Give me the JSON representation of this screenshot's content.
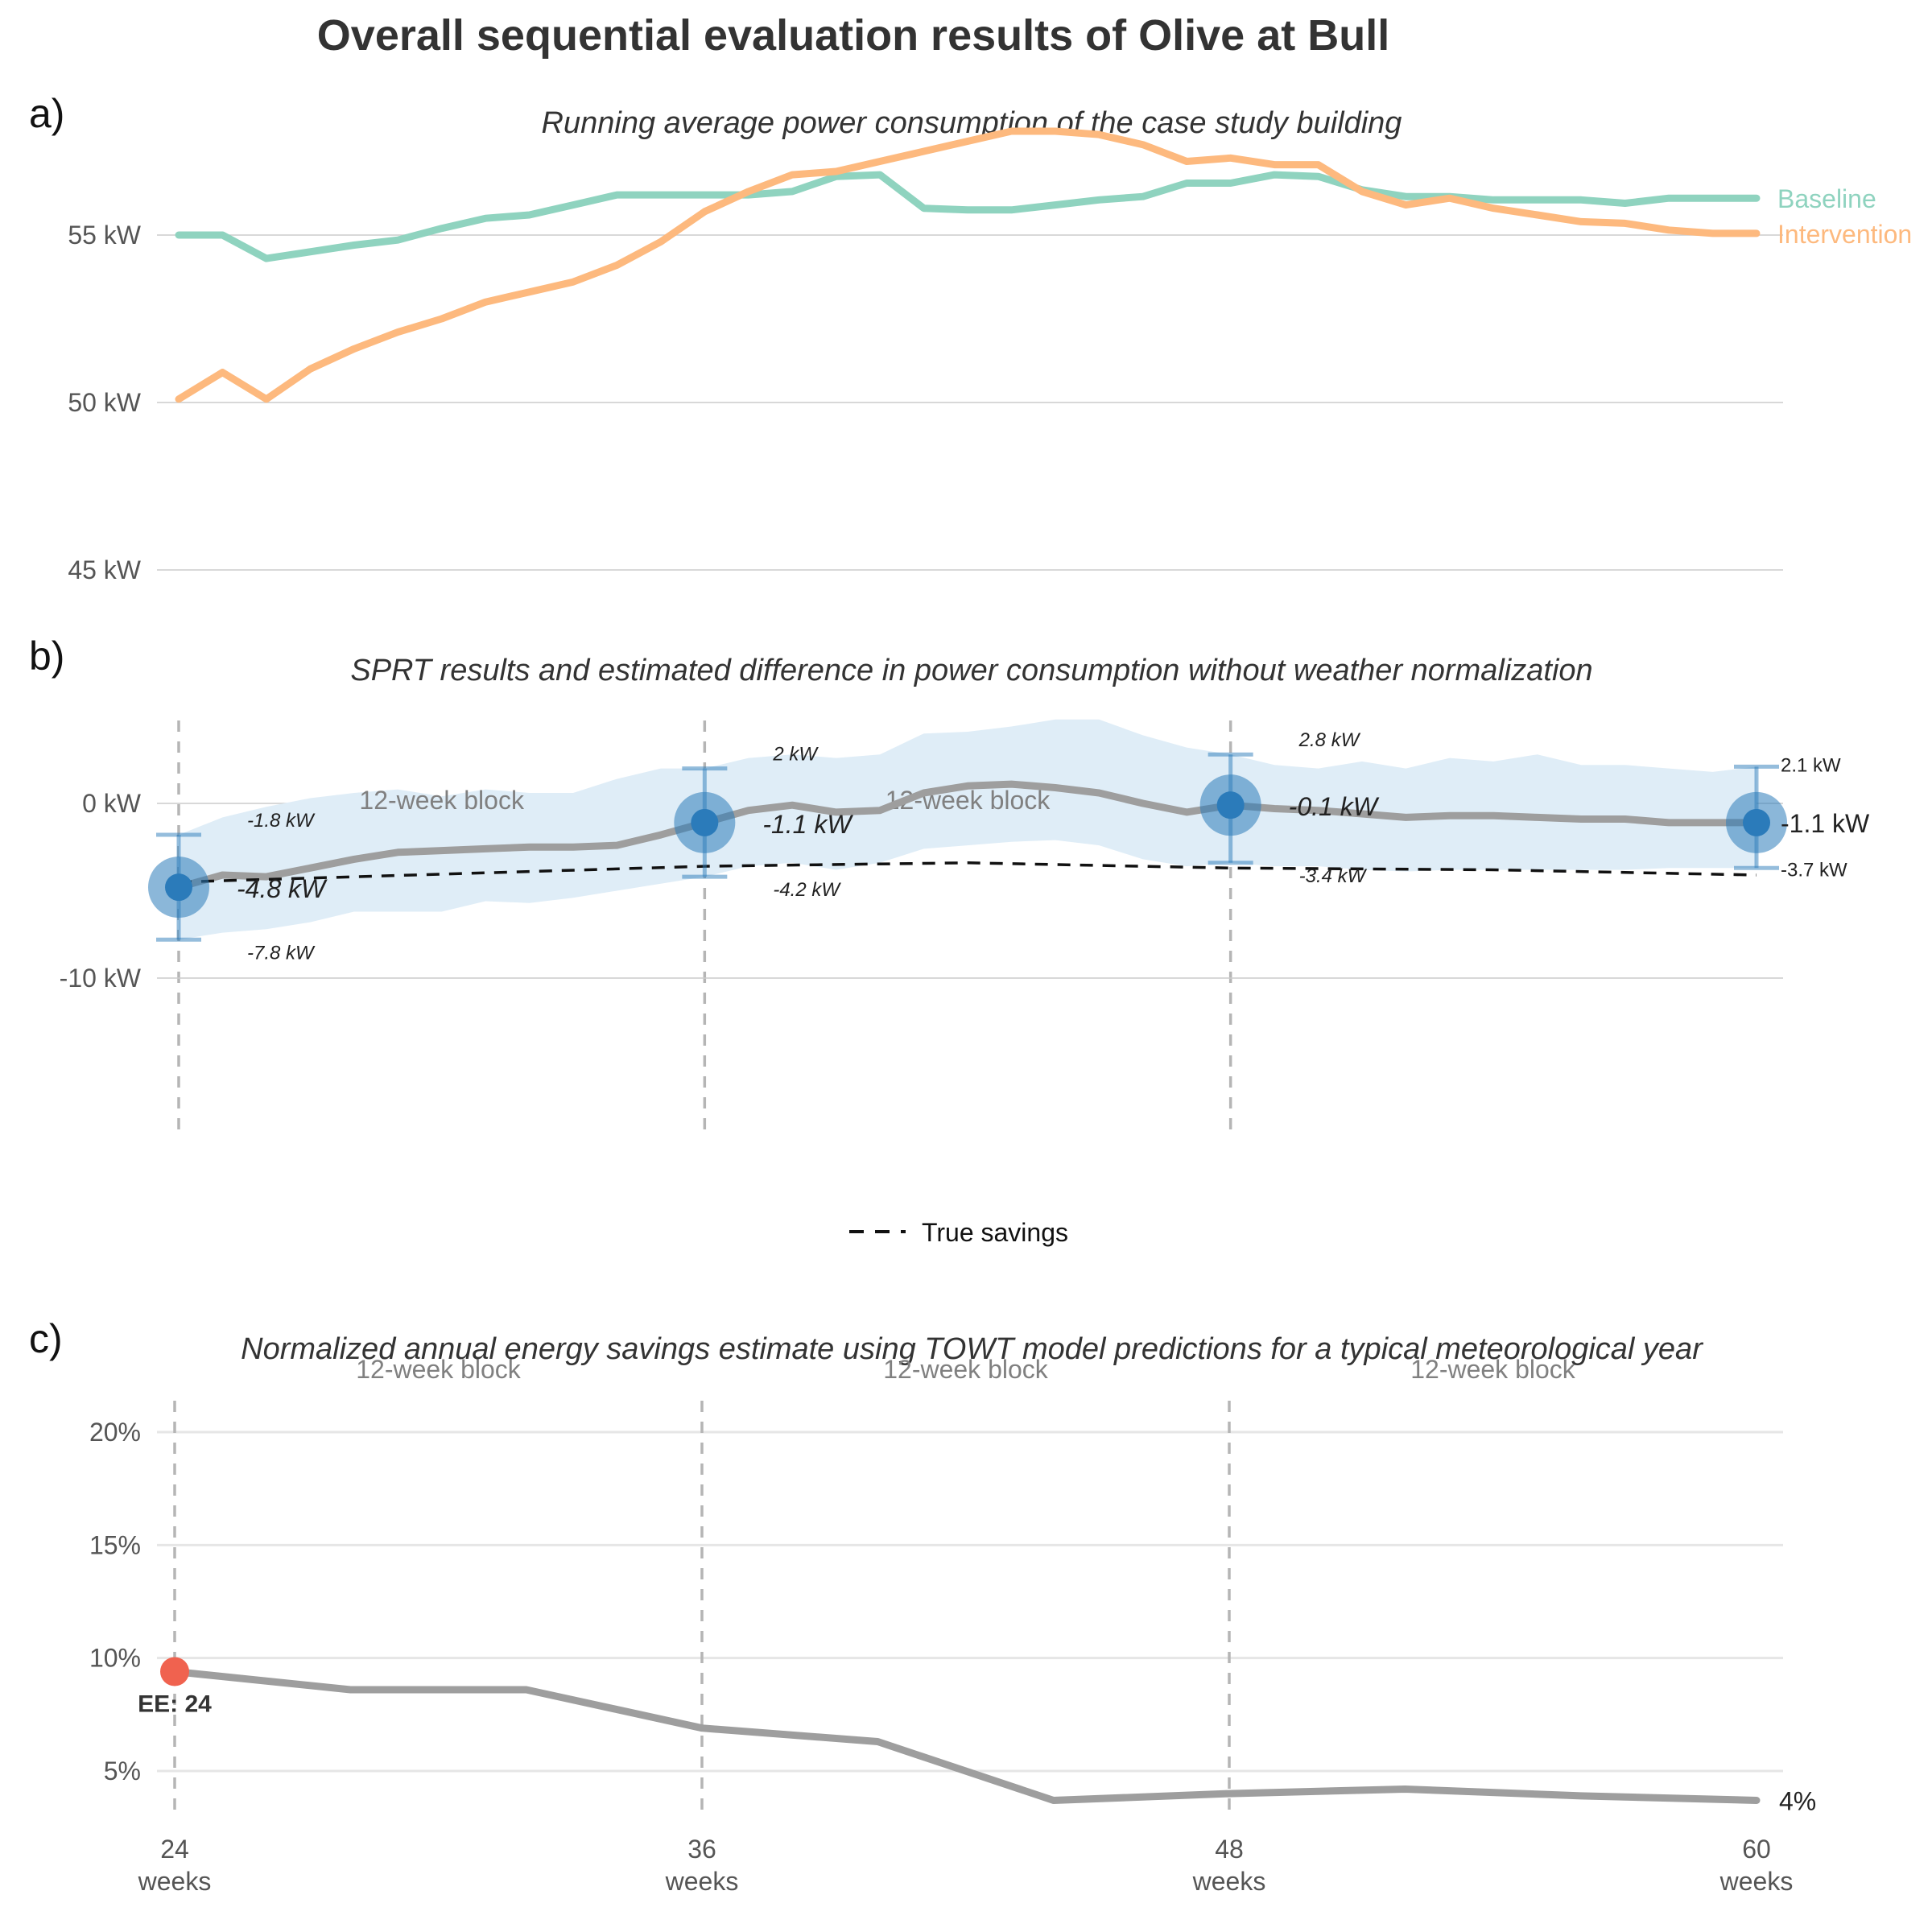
{
  "figure": {
    "title": "Overall sequential evaluation results of Olive at Bull"
  },
  "colors": {
    "baseline": "#8fd3bf",
    "intervention": "#fdb97e",
    "estimate": "#9e9e9e",
    "band": "#dfedf7",
    "point": "#2b7bba",
    "ee_point": "#f0624f",
    "true_savings": "#111111",
    "grid": "#cccccc",
    "vline": "#b5b5b5"
  },
  "chart_data": [
    {
      "panel": "a)",
      "type": "line",
      "title": "Running average power consumption of the case study building",
      "xlim": [
        24,
        60
      ],
      "ylim": [
        44,
        57.5
      ],
      "yticks": [
        45,
        50,
        55
      ],
      "ytick_labels": [
        "45 kW",
        "50 kW",
        "55 kW"
      ],
      "x": [
        24,
        25,
        26,
        27,
        28,
        29,
        30,
        31,
        32,
        33,
        34,
        35,
        36,
        37,
        38,
        39,
        40,
        41,
        42,
        43,
        44,
        45,
        46,
        47,
        48,
        49,
        50,
        51,
        52,
        53,
        54,
        55,
        56,
        57,
        58,
        59,
        60
      ],
      "series": [
        {
          "name": "Baseline",
          "values": [
            55,
            55,
            54.3,
            54.5,
            54.7,
            54.85,
            55.2,
            55.5,
            55.6,
            55.9,
            56.2,
            56.2,
            56.2,
            56.2,
            56.3,
            56.75,
            56.8,
            55.8,
            55.75,
            55.75,
            55.9,
            56.05,
            56.15,
            56.55,
            56.55,
            56.8,
            56.75,
            56.35,
            56.15,
            56.15,
            56.05,
            56.05,
            56.05,
            55.95,
            56.1,
            56.1,
            56.1
          ]
        },
        {
          "name": "Intervention",
          "values": [
            50.1,
            50.9,
            50.1,
            51,
            51.6,
            52.1,
            52.5,
            53,
            53.3,
            53.6,
            54.1,
            54.8,
            55.7,
            56.3,
            56.8,
            56.9,
            57.2,
            57.5,
            57.8,
            58.1,
            58.1,
            58,
            57.7,
            57.2,
            57.3,
            57.1,
            57.1,
            56.3,
            55.9,
            56.1,
            55.8,
            55.6,
            55.4,
            55.35,
            55.15,
            55.05,
            55.05
          ]
        }
      ]
    },
    {
      "panel": "b)",
      "type": "line",
      "title": "SPRT results and estimated difference in power consumption without weather normalization",
      "xlim": [
        24,
        60
      ],
      "ylim": [
        -20,
        5
      ],
      "yticks": [
        -10,
        0
      ],
      "ytick_labels": [
        "-10 kW",
        "0 kW"
      ],
      "x": [
        24,
        25,
        26,
        27,
        28,
        29,
        30,
        31,
        32,
        33,
        34,
        35,
        36,
        37,
        38,
        39,
        40,
        41,
        42,
        43,
        44,
        45,
        46,
        47,
        48,
        49,
        50,
        51,
        52,
        53,
        54,
        55,
        56,
        57,
        58,
        59,
        60
      ],
      "estimate": [
        -4.8,
        -4.1,
        -4.2,
        -3.7,
        -3.2,
        -2.8,
        -2.7,
        -2.6,
        -2.5,
        -2.5,
        -2.4,
        -1.8,
        -1.1,
        -0.4,
        -0.1,
        -0.5,
        -0.4,
        0.6,
        1.0,
        1.1,
        0.9,
        0.6,
        0.0,
        -0.5,
        -0.1,
        -0.3,
        -0.4,
        -0.6,
        -0.8,
        -0.7,
        -0.7,
        -0.8,
        -0.9,
        -0.9,
        -1.1,
        -1.1,
        -1.1
      ],
      "ci_lower": [
        -7.8,
        -7.4,
        -7.2,
        -6.8,
        -6.2,
        -6.2,
        -6.2,
        -5.6,
        -5.7,
        -5.4,
        -5.0,
        -4.6,
        -4.2,
        -3.6,
        -3.4,
        -3.8,
        -3.4,
        -2.6,
        -2.4,
        -2.2,
        -2.1,
        -2.4,
        -3.2,
        -3.6,
        -3.4,
        -3.6,
        -3.6,
        -3.8,
        -3.9,
        -3.8,
        -3.8,
        -3.8,
        -3.8,
        -3.8,
        -3.7,
        -3.7,
        -3.7
      ],
      "ci_upper": [
        -1.8,
        -0.8,
        -0.2,
        0.3,
        0.6,
        0.8,
        0.4,
        0.8,
        0.6,
        0.6,
        1.4,
        2.0,
        2.0,
        2.6,
        2.8,
        2.6,
        2.8,
        4.0,
        4.1,
        4.4,
        4.8,
        4.8,
        3.9,
        3.2,
        2.8,
        2.2,
        2.0,
        2.4,
        2.0,
        2.6,
        2.4,
        2.8,
        2.2,
        2.2,
        2.0,
        1.8,
        2.1
      ],
      "true_savings": {
        "name": "True savings",
        "x": [
          24,
          36,
          42,
          48,
          54,
          60
        ],
        "values": [
          -4.5,
          -3.6,
          -3.4,
          -3.7,
          -3.8,
          -4.1
        ]
      },
      "checkpoints": [
        {
          "x": 24,
          "y": -4.8,
          "lower": -7.8,
          "upper": -1.8,
          "label": "-4.8 kW",
          "lower_label": "-7.8 kW",
          "upper_label": "-1.8 kW"
        },
        {
          "x": 36,
          "y": -1.1,
          "lower": -4.2,
          "upper": 2.0,
          "label": "-1.1 kW",
          "lower_label": "-4.2 kW",
          "upper_label": "2 kW"
        },
        {
          "x": 48,
          "y": -0.1,
          "lower": -3.4,
          "upper": 2.8,
          "label": "-0.1 kW",
          "lower_label": "-3.4 kW",
          "upper_label": "2.8 kW"
        },
        {
          "x": 60,
          "y": -1.1,
          "lower": -3.7,
          "upper": 2.1,
          "label": "-1.1 kW",
          "lower_label": "-3.7 kW",
          "upper_label": "2.1 kW"
        }
      ],
      "block_labels": [
        {
          "x": 30,
          "text": "12-week block"
        },
        {
          "x": 42,
          "text": "12-week block"
        }
      ],
      "vlines": [
        24,
        36,
        48
      ]
    },
    {
      "panel": "c)",
      "type": "line",
      "title": "Normalized annual energy savings estimate using TOWT model predictions for a typical meteorological year",
      "xlim": [
        24,
        60
      ],
      "ylim": [
        3,
        21
      ],
      "yticks": [
        5,
        10,
        15,
        20
      ],
      "ytick_labels": [
        "5%",
        "10%",
        "15%",
        "20%"
      ],
      "xticks": [
        24,
        36,
        48,
        60
      ],
      "xtick_labels": [
        "24",
        "36",
        "48",
        "60"
      ],
      "xtick_sublabel": "weeks",
      "x": [
        24,
        28,
        32,
        36,
        40,
        44,
        48,
        52,
        56,
        60
      ],
      "values": [
        9.4,
        8.6,
        8.6,
        6.9,
        6.3,
        3.7,
        4.0,
        4.2,
        3.9,
        3.7
      ],
      "end_label": "4%",
      "early_exit": {
        "x": 24,
        "y": 9.4,
        "label": "EE: 24"
      },
      "block_labels": [
        {
          "x": 30,
          "text": "12-week block"
        },
        {
          "x": 42,
          "text": "12-week block"
        },
        {
          "x": 54,
          "text": "12-week block"
        }
      ],
      "vlines": [
        24,
        36,
        48
      ]
    }
  ]
}
